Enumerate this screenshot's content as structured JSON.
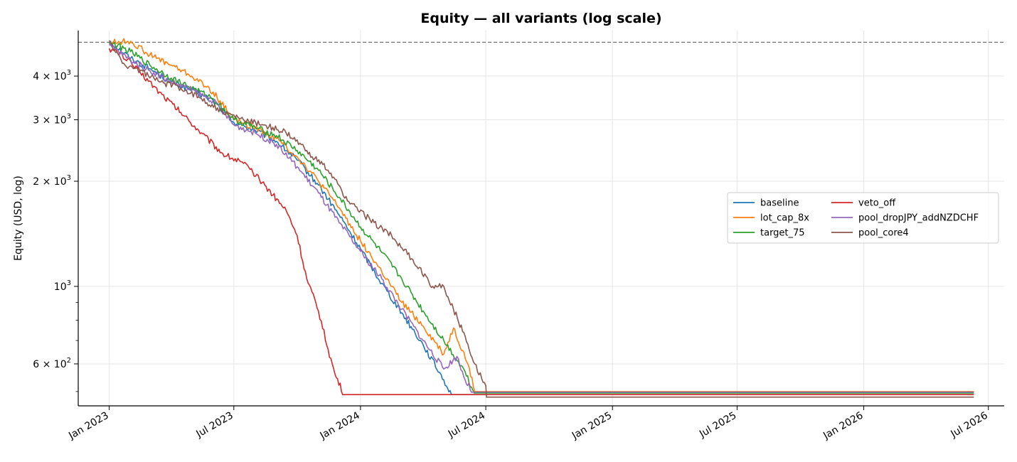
{
  "chart_data": {
    "type": "line",
    "title": "Equity — all variants (log scale)",
    "xlabel": "",
    "ylabel": "Equity (USD, log)",
    "y_scale": "log",
    "ylim": [
      455,
      5400
    ],
    "xlim": [
      "2022-11-17",
      "2026-07-24"
    ],
    "x_ticks": [
      {
        "date": "2023-01-01",
        "label": "Jan 2023"
      },
      {
        "date": "2023-07-01",
        "label": "Jul 2023"
      },
      {
        "date": "2024-01-01",
        "label": "Jan 2024"
      },
      {
        "date": "2024-07-01",
        "label": "Jul 2024"
      },
      {
        "date": "2025-01-01",
        "label": "Jan 2025"
      },
      {
        "date": "2025-07-01",
        "label": "Jul 2025"
      },
      {
        "date": "2026-01-01",
        "label": "Jan 2026"
      },
      {
        "date": "2026-07-01",
        "label": "Jul 2026"
      }
    ],
    "y_ticks": [
      {
        "value": 600,
        "mantissa": "6",
        "exp": "2"
      },
      {
        "value": 1000,
        "mantissa": "",
        "exp": "3"
      },
      {
        "value": 2000,
        "mantissa": "2",
        "exp": "3"
      },
      {
        "value": 3000,
        "mantissa": "3",
        "exp": "3"
      },
      {
        "value": 4000,
        "mantissa": "4",
        "exp": "3"
      }
    ],
    "reference_line": {
      "value": 5000,
      "style": "dashed"
    },
    "grid": true,
    "legend_placement": "center-right",
    "series": [
      {
        "name": "baseline",
        "color": "#1f77b4",
        "x": [
          "2023-01-01",
          "2023-02-01",
          "2023-03-01",
          "2023-04-01",
          "2023-05-01",
          "2023-06-01",
          "2023-07-01",
          "2023-08-01",
          "2023-09-01",
          "2023-10-01",
          "2023-11-01",
          "2023-12-01",
          "2024-01-01",
          "2024-02-01",
          "2024-03-01",
          "2024-04-01",
          "2024-05-01",
          "2024-05-12",
          "2026-06-10"
        ],
        "y": [
          5050,
          4500,
          4200,
          3850,
          3650,
          3400,
          2950,
          2800,
          2600,
          2300,
          1950,
          1600,
          1280,
          1020,
          840,
          680,
          540,
          490,
          490
        ]
      },
      {
        "name": "lot_cap_8x",
        "color": "#ff7f0e",
        "x": [
          "2023-01-01",
          "2023-02-01",
          "2023-03-01",
          "2023-04-01",
          "2023-05-01",
          "2023-06-01",
          "2023-07-01",
          "2023-08-01",
          "2023-09-01",
          "2023-10-01",
          "2023-11-01",
          "2023-12-01",
          "2024-01-01",
          "2024-02-01",
          "2024-03-01",
          "2024-04-01",
          "2024-05-01",
          "2024-05-15",
          "2024-06-05",
          "2024-06-15",
          "2026-06-10"
        ],
        "y": [
          5000,
          5030,
          4600,
          4300,
          4000,
          3600,
          3000,
          2850,
          2650,
          2350,
          2000,
          1680,
          1350,
          1100,
          900,
          770,
          640,
          760,
          600,
          500,
          500
        ]
      },
      {
        "name": "target_75",
        "color": "#2ca02c",
        "x": [
          "2023-01-01",
          "2023-02-01",
          "2023-03-01",
          "2023-04-01",
          "2023-05-01",
          "2023-06-01",
          "2023-07-01",
          "2023-08-01",
          "2023-09-01",
          "2023-10-01",
          "2023-11-01",
          "2023-12-01",
          "2024-01-01",
          "2024-02-01",
          "2024-03-01",
          "2024-04-01",
          "2024-05-01",
          "2024-06-01",
          "2024-06-14",
          "2026-06-10"
        ],
        "y": [
          5000,
          4700,
          4300,
          3950,
          3700,
          3450,
          3000,
          2850,
          2700,
          2450,
          2150,
          1800,
          1480,
          1250,
          1050,
          850,
          700,
          570,
          495,
          495
        ]
      },
      {
        "name": "veto_off",
        "color": "#d62728",
        "x": [
          "2023-01-01",
          "2023-01-20",
          "2023-02-15",
          "2023-03-15",
          "2023-04-15",
          "2023-05-15",
          "2023-06-15",
          "2023-07-15",
          "2023-08-15",
          "2023-09-15",
          "2023-10-01",
          "2023-10-15",
          "2023-11-01",
          "2023-11-15",
          "2023-11-25",
          "2023-12-08",
          "2026-06-10"
        ],
        "y": [
          4800,
          4600,
          4100,
          3600,
          3150,
          2750,
          2400,
          2250,
          1950,
          1650,
          1400,
          1050,
          850,
          660,
          560,
          490,
          490
        ]
      },
      {
        "name": "pool_dropJPY_addNZDCHF",
        "color": "#9467bd",
        "x": [
          "2023-01-01",
          "2023-02-01",
          "2023-03-01",
          "2023-04-01",
          "2023-05-01",
          "2023-06-01",
          "2023-07-01",
          "2023-08-01",
          "2023-09-01",
          "2023-10-01",
          "2023-11-01",
          "2023-12-01",
          "2024-01-01",
          "2024-02-01",
          "2024-03-01",
          "2024-04-01",
          "2024-05-01",
          "2024-05-20",
          "2024-06-01",
          "2024-06-12",
          "2026-06-10"
        ],
        "y": [
          4900,
          4450,
          4150,
          3850,
          3650,
          3400,
          2900,
          2750,
          2550,
          2200,
          1850,
          1520,
          1260,
          1050,
          860,
          700,
          580,
          630,
          540,
          498,
          498
        ]
      },
      {
        "name": "pool_core4",
        "color": "#8c564b",
        "x": [
          "2023-01-01",
          "2023-01-20",
          "2023-02-15",
          "2023-03-15",
          "2023-04-15",
          "2023-05-15",
          "2023-06-15",
          "2023-07-15",
          "2023-08-15",
          "2023-09-15",
          "2023-10-15",
          "2023-11-15",
          "2023-12-15",
          "2024-01-15",
          "2024-02-15",
          "2024-03-15",
          "2024-04-15",
          "2024-05-01",
          "2024-05-15",
          "2024-06-01",
          "2024-06-15",
          "2024-07-01",
          "2024-07-02",
          "2026-06-10"
        ],
        "y": [
          5050,
          4350,
          4150,
          3850,
          3700,
          3450,
          3150,
          3000,
          2900,
          2750,
          2450,
          2150,
          1750,
          1550,
          1400,
          1200,
          1000,
          1000,
          860,
          720,
          600,
          520,
          482,
          482
        ]
      }
    ]
  }
}
